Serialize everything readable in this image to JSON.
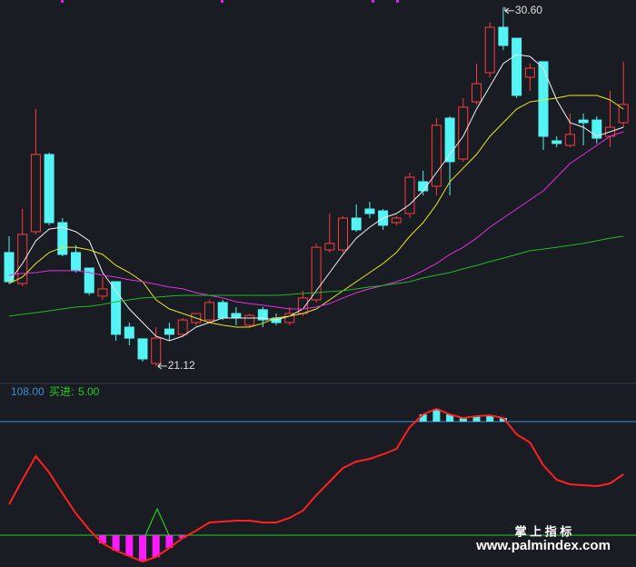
{
  "chart_data": [
    {
      "type": "candlestick",
      "candles": [
        [
          24.12,
          24.55,
          23.3,
          23.35
        ],
        [
          23.3,
          25.27,
          23.23,
          24.6
        ],
        [
          24.67,
          27.91,
          24.6,
          26.71
        ],
        [
          26.71,
          26.76,
          24.84,
          24.91
        ],
        [
          24.91,
          25.03,
          24.02,
          24.07
        ],
        [
          24.12,
          24.31,
          23.59,
          23.64
        ],
        [
          23.71,
          23.71,
          22.99,
          23.06
        ],
        [
          22.97,
          23.47,
          22.87,
          23.16
        ],
        [
          23.35,
          23.35,
          21.79,
          21.96
        ],
        [
          22.15,
          22.27,
          21.67,
          21.86
        ],
        [
          21.84,
          21.84,
          21.24,
          21.31
        ],
        [
          21.19,
          22.15,
          21.12,
          21.86
        ],
        [
          22.1,
          22.27,
          21.79,
          21.96
        ],
        [
          21.96,
          22.39,
          21.91,
          22.34
        ],
        [
          22.27,
          22.51,
          22.2,
          22.51
        ],
        [
          22.34,
          22.87,
          22.25,
          22.8
        ],
        [
          22.8,
          22.87,
          22.34,
          22.39
        ],
        [
          22.51,
          22.68,
          22.2,
          22.39
        ],
        [
          22.2,
          22.51,
          22.15,
          22.46
        ],
        [
          22.61,
          22.68,
          22.15,
          22.34
        ],
        [
          22.39,
          22.51,
          22.2,
          22.27
        ],
        [
          22.27,
          22.68,
          22.2,
          22.51
        ],
        [
          22.51,
          23.11,
          22.44,
          22.92
        ],
        [
          22.87,
          24.36,
          22.8,
          24.26
        ],
        [
          24.19,
          25.15,
          24.12,
          24.36
        ],
        [
          24.19,
          25.08,
          24.12,
          25.03
        ],
        [
          25.03,
          25.39,
          24.67,
          24.72
        ],
        [
          25.27,
          25.46,
          25.03,
          25.15
        ],
        [
          25.22,
          25.27,
          24.72,
          24.84
        ],
        [
          24.91,
          25.08,
          24.84,
          25.03
        ],
        [
          25.15,
          26.23,
          25.03,
          26.11
        ],
        [
          25.99,
          26.28,
          25.63,
          25.75
        ],
        [
          25.87,
          27.67,
          25.63,
          27.48
        ],
        [
          27.67,
          27.72,
          25.63,
          26.52
        ],
        [
          26.59,
          28.2,
          26.52,
          27.96
        ],
        [
          28.1,
          29.11,
          28.03,
          28.58
        ],
        [
          28.87,
          30.19,
          28.75,
          30.07
        ],
        [
          30.07,
          30.6,
          29.47,
          29.59
        ],
        [
          29.78,
          29.78,
          28.2,
          28.27
        ],
        [
          28.75,
          29.11,
          28.39,
          28.99
        ],
        [
          29.16,
          29.16,
          26.83,
          27.19
        ],
        [
          27.07,
          27.19,
          26.9,
          27.0
        ],
        [
          26.95,
          27.79,
          26.9,
          27.24
        ],
        [
          27.62,
          27.79,
          26.95,
          27.55
        ],
        [
          27.62,
          27.72,
          27.0,
          27.14
        ],
        [
          27.19,
          28.39,
          26.9,
          27.43
        ],
        [
          27.55,
          29.16,
          27.43,
          28.03
        ]
      ],
      "up_color": "#ff3b3b",
      "down_color": "#54f4f4",
      "series": [
        {
          "color": "#f0f0f0",
          "values": [
            23.35,
            23.83,
            24.43,
            24.74,
            24.79,
            24.67,
            24.43,
            23.59,
            23.11,
            22.63,
            22.27,
            21.91,
            21.79,
            21.91,
            22.15,
            22.27,
            22.39,
            22.39,
            22.39,
            22.39,
            22.34,
            22.44,
            22.63,
            23.11,
            23.59,
            24.07,
            24.5,
            24.79,
            25.03,
            25.15,
            25.39,
            25.75,
            26.23,
            26.71,
            27.19,
            27.91,
            28.51,
            29.11,
            29.35,
            29.3,
            28.99,
            28.15,
            27.55,
            27.43,
            27.19,
            27.31,
            27.43
          ]
        },
        {
          "color": "#e8e820",
          "values": [
            23.3,
            23.47,
            23.83,
            24.12,
            24.26,
            24.26,
            24.19,
            24.07,
            23.78,
            23.59,
            23.35,
            22.87,
            22.63,
            22.51,
            22.39,
            22.27,
            22.2,
            22.15,
            22.15,
            22.25,
            22.39,
            22.44,
            22.51,
            22.63,
            22.87,
            23.11,
            23.35,
            23.59,
            23.83,
            24.12,
            24.55,
            24.91,
            25.39,
            25.99,
            26.35,
            26.71,
            27.19,
            27.55,
            27.91,
            28.1,
            28.15,
            28.2,
            28.27,
            28.27,
            28.27,
            28.15,
            27.91
          ]
        },
        {
          "color": "#e030e0",
          "values": [
            23.52,
            23.57,
            23.59,
            23.64,
            23.64,
            23.64,
            23.59,
            23.52,
            23.47,
            23.4,
            23.35,
            23.28,
            23.21,
            23.16,
            23.06,
            22.99,
            22.92,
            22.82,
            22.77,
            22.73,
            22.68,
            22.63,
            22.63,
            22.68,
            22.77,
            22.92,
            23.06,
            23.16,
            23.25,
            23.35,
            23.47,
            23.64,
            23.83,
            24.07,
            24.26,
            24.5,
            24.79,
            25.03,
            25.27,
            25.51,
            25.75,
            26.11,
            26.47,
            26.71,
            26.95,
            27.19,
            27.31
          ]
        },
        {
          "color": "#22b822",
          "values": [
            22.44,
            22.49,
            22.53,
            22.58,
            22.63,
            22.68,
            22.7,
            22.75,
            22.82,
            22.87,
            22.92,
            22.94,
            22.97,
            22.99,
            22.99,
            22.99,
            22.99,
            22.99,
            22.99,
            22.99,
            22.99,
            23.01,
            23.04,
            23.06,
            23.09,
            23.11,
            23.16,
            23.21,
            23.25,
            23.3,
            23.35,
            23.45,
            23.52,
            23.59,
            23.69,
            23.78,
            23.88,
            23.97,
            24.07,
            24.17,
            24.21,
            24.26,
            24.31,
            24.36,
            24.43,
            24.5,
            24.55
          ]
        }
      ],
      "annotations": [
        {
          "value": 30.6,
          "label": "30.60"
        },
        {
          "value": 21.12,
          "label": "21.12"
        }
      ],
      "ylim": [
        20.71,
        30.79
      ]
    },
    {
      "type": "line",
      "series": [
        {
          "color": "#ff2020",
          "values": [
            33.02,
            55.26,
            76.69,
            61.86,
            42.9,
            24.78,
            9.94,
            -2.42,
            -9.01,
            -13.95,
            -18.9,
            -14.78,
            -6.54,
            2.53,
            9.12,
            16.54,
            17.36,
            18.18,
            18.18,
            16.54,
            16.54,
            20.66,
            27.25,
            41.26,
            53.62,
            65.98,
            71.74,
            74.22,
            78.34,
            83.28,
            103.06,
            114.59,
            119.54,
            114.59,
            111.3,
            112.94,
            113.77,
            111.3,
            96.46,
            89.05,
            68.45,
            55.26,
            51.14,
            50.32,
            49.5,
            51.97,
            60.21
          ]
        }
      ],
      "levels": [
        {
          "value": 108,
          "label": "108.00",
          "color": "#3d8fd6",
          "bar_color": "#56f0f0"
        },
        {
          "name": "买进:",
          "value": 5,
          "label": "5.00",
          "color": "#22cc22",
          "bar_color": "#ff1aff"
        }
      ],
      "ylim": [
        -23.84,
        142.61
      ]
    }
  ],
  "watermark": {
    "title": "掌 上 指 标",
    "url": "www.palmindex.com"
  }
}
